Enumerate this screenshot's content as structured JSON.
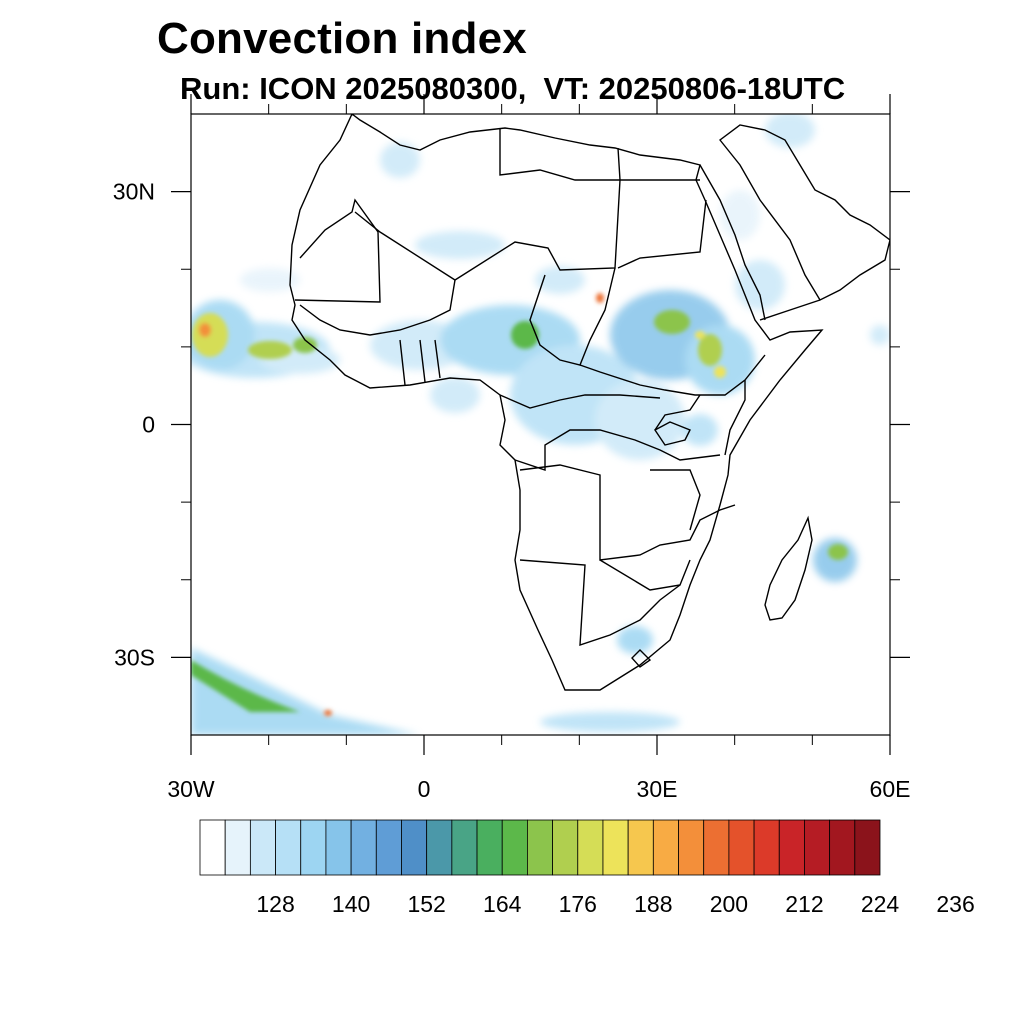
{
  "title": "Convection index",
  "subtitle": "Run: ICON 2025080300,  VT: 20250806-18UTC",
  "map": {
    "lon_range": [
      -30,
      60
    ],
    "lat_range": [
      -40,
      40
    ],
    "lat_ticks": [
      {
        "value": 30,
        "label": "30N"
      },
      {
        "value": 0,
        "label": "0"
      },
      {
        "value": -30,
        "label": "30S"
      }
    ],
    "lon_ticks": [
      {
        "value": -30,
        "label": "30W"
      },
      {
        "value": 0,
        "label": "0"
      },
      {
        "value": 30,
        "label": "30E"
      },
      {
        "value": 60,
        "label": "60E"
      }
    ],
    "minor_lat": [
      20,
      10,
      -10,
      -20
    ],
    "minor_lon": [
      -20,
      -10,
      10,
      20,
      40,
      50
    ]
  },
  "colorbar": {
    "colors": [
      "#ffffff",
      "#e6f3fb",
      "#cbe8f8",
      "#b6e0f6",
      "#9dd5f2",
      "#86c4ea",
      "#72b0e1",
      "#5f9dd6",
      "#4f8fc8",
      "#4b98a9",
      "#49a486",
      "#4aaf5f",
      "#5cb84a",
      "#8cc44c",
      "#b0cf4f",
      "#d5dd56",
      "#ede35a",
      "#f6c74e",
      "#f8ab44",
      "#f38f3a",
      "#ec6f32",
      "#e4522b",
      "#dc3a29",
      "#c92428",
      "#b51c24",
      "#a2171f",
      "#8b131b"
    ],
    "labels": [
      "128",
      "140",
      "152",
      "164",
      "176",
      "188",
      "200",
      "212",
      "224",
      "236"
    ]
  }
}
